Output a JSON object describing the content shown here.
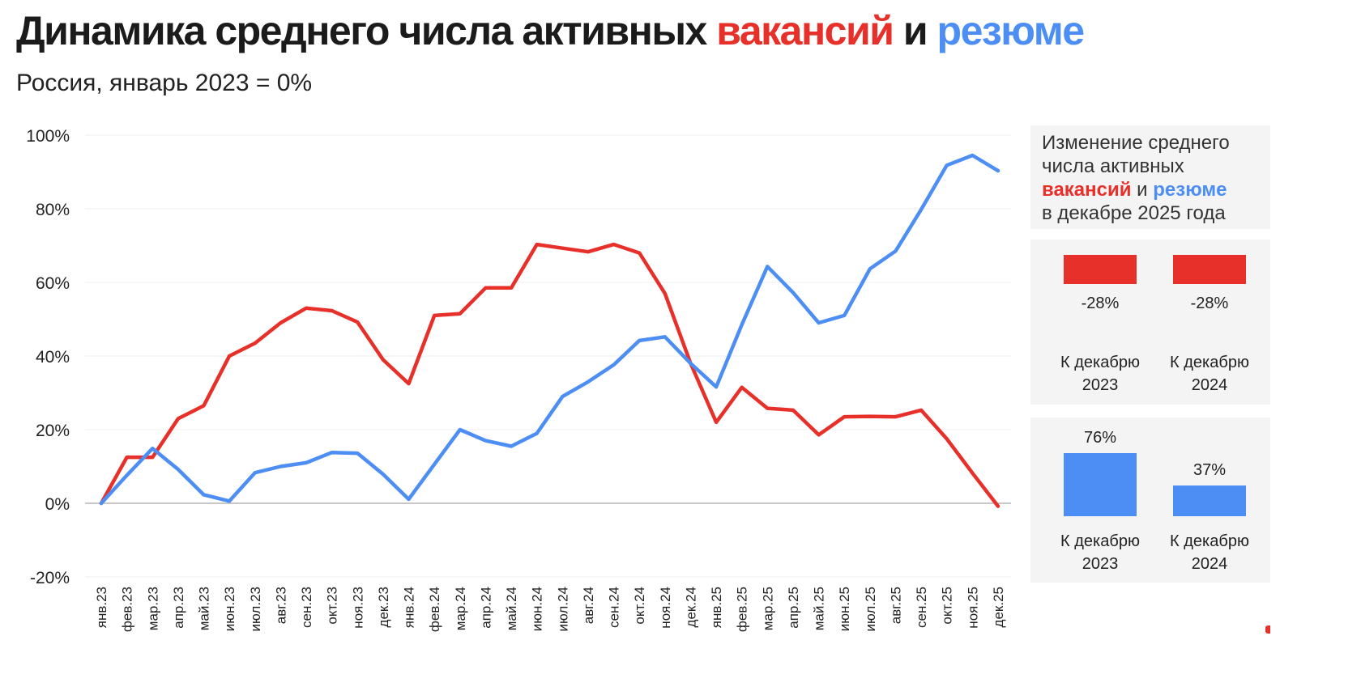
{
  "header": {
    "title_prefix": "Динамика среднего числа активных",
    "title_vacancies": "вакансий",
    "title_and": "и",
    "title_resumes": "резюме",
    "subtitle": "Россия, январь 2023 = 0%"
  },
  "colors": {
    "vacancies": "#e8302a",
    "resumes": "#4d8ef5",
    "grid": "#efefef",
    "zero_line": "#b5b5b5",
    "panel_bg": "#f4f4f4"
  },
  "chart_data": [
    {
      "type": "line",
      "title": "Динамика среднего числа активных вакансий и резюме",
      "subtitle": "Россия, январь 2023 = 0%",
      "categories": [
        "янв.23",
        "фев.23",
        "мар.23",
        "апр.23",
        "май.23",
        "июн.23",
        "июл.23",
        "авг.23",
        "сен.23",
        "окт.23",
        "ноя.23",
        "дек.23",
        "янв.24",
        "фев.24",
        "мар.24",
        "апр.24",
        "май.24",
        "июн.24",
        "июл.24",
        "авг.24",
        "сен.24",
        "окт.24",
        "ноя.24",
        "дек.24",
        "янв.25",
        "фев.25",
        "мар.25",
        "апр.25",
        "май.25",
        "июн.25",
        "июл.25",
        "авг.25",
        "сен.25",
        "окт.25",
        "ноя.25",
        "дек.25"
      ],
      "series": [
        {
          "name": "вакансий",
          "color": "#e8302a",
          "values": [
            0,
            12.5,
            12.5,
            23,
            26.5,
            40,
            43.5,
            49,
            53,
            52.3,
            49.2,
            39,
            32.5,
            51,
            51.5,
            58.5,
            58.5,
            70.3,
            69.3,
            68.3,
            70.3,
            68,
            57,
            38,
            22,
            31.5,
            25.8,
            25.3,
            18.6,
            23.5,
            23.6,
            23.5,
            25.3,
            17.5,
            8.2,
            -0.8
          ]
        },
        {
          "name": "резюме",
          "color": "#4d8ef5",
          "values": [
            0,
            7.6,
            14.9,
            9.2,
            2.3,
            0.6,
            8.3,
            10,
            11,
            13.8,
            13.6,
            7.9,
            1.1,
            10.6,
            20,
            17,
            15.5,
            19,
            29,
            33,
            37.6,
            44.2,
            45.2,
            38,
            31.6,
            48.5,
            64.3,
            57.2,
            49,
            51,
            63.7,
            68.5,
            79.8,
            91.8,
            94.5,
            90.3
          ]
        }
      ],
      "ylim": [
        -20,
        100
      ],
      "yticks": [
        -20,
        0,
        20,
        40,
        60,
        80,
        100
      ],
      "ytick_labels": [
        "-20%",
        "0%",
        "20%",
        "40%",
        "60%",
        "80%",
        "100%"
      ],
      "xlabel": "",
      "ylabel": "",
      "grid": true,
      "legend": "none"
    },
    {
      "type": "bar",
      "title": "Изменение среднего числа активных вакансий и резюме в декабре 2025 года",
      "heading_line1": "Изменение среднего",
      "heading_line2": "числа активных",
      "heading_vacancies": "вакансий",
      "heading_and": "и",
      "heading_resumes": "резюме",
      "heading_line4": "в декабре 2025 года",
      "categories": [
        "К декабрю 2023",
        "К декабрю 2024"
      ],
      "category_lines": [
        [
          "К декабрю",
          "2023"
        ],
        [
          "К декабрю",
          "2024"
        ]
      ],
      "series": [
        {
          "name": "вакансий",
          "color": "#e8302a",
          "values": [
            -28,
            -28
          ],
          "labels": [
            "-28%",
            "-28%"
          ]
        },
        {
          "name": "резюме",
          "color": "#4d8ef5",
          "values": [
            76,
            37
          ],
          "labels": [
            "76%",
            "37%"
          ]
        }
      ],
      "legend": "none"
    }
  ]
}
